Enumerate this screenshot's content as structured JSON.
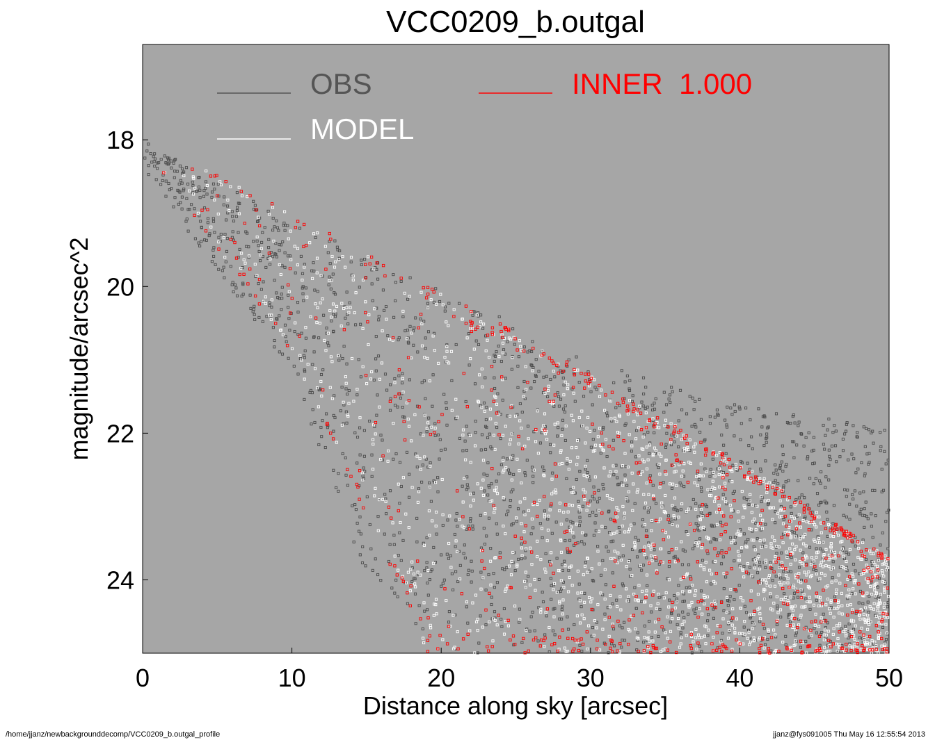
{
  "chart_data": {
    "type": "scatter",
    "title": "VCC0209_b.outgal",
    "xlabel": "Distance along sky [arcsec]",
    "ylabel": "magnitude/arcsec^2",
    "xlim": [
      0,
      50
    ],
    "ylim": [
      25.0,
      16.7
    ],
    "y_inverted": true,
    "x_ticks": [
      "0",
      "10",
      "20",
      "30",
      "40",
      "50"
    ],
    "y_ticks": [
      "18",
      "20",
      "22",
      "24"
    ],
    "background": "#a6a6a6",
    "grid": false,
    "legend_placement": "top",
    "legend": [
      {
        "name": "OBS",
        "color": "#555555"
      },
      {
        "name": "MODEL",
        "color": "#ffffff"
      },
      {
        "name": "INNER  1.000",
        "color": "#ff0000"
      }
    ],
    "series": [
      {
        "name": "OBS",
        "color": "#4d4d4d",
        "marker": "open-square",
        "description": "observed profile points",
        "upper_edge": [
          [
            0.0,
            18.0
          ],
          [
            10.0,
            19.1
          ],
          [
            20.0,
            20.0
          ],
          [
            30.0,
            21.0
          ],
          [
            40.0,
            21.6
          ],
          [
            50.0,
            21.9
          ]
        ],
        "lower_edge": [
          [
            0.0,
            18.4
          ],
          [
            10.0,
            21.2
          ],
          [
            15.0,
            24.0
          ],
          [
            20.0,
            25.0
          ]
        ]
      },
      {
        "name": "MODEL",
        "color": "#ffffff",
        "marker": "open-square",
        "description": "model profile points",
        "upper_edge": [
          [
            0.0,
            18.0
          ],
          [
            10.0,
            18.95
          ],
          [
            20.0,
            20.05
          ],
          [
            30.0,
            21.2
          ],
          [
            40.0,
            22.4
          ],
          [
            50.0,
            23.7
          ]
        ],
        "lower_edge": [
          [
            0.0,
            18.05
          ],
          [
            10.0,
            20.9
          ],
          [
            19.0,
            25.0
          ]
        ]
      },
      {
        "name": "INNER  1.000",
        "color": "#ff0000",
        "marker": "open-square",
        "description": "inner model component points",
        "upper_edge": [
          [
            0.0,
            18.0
          ],
          [
            10.0,
            18.95
          ],
          [
            20.0,
            20.05
          ],
          [
            30.0,
            21.2
          ],
          [
            40.0,
            22.4
          ],
          [
            50.0,
            23.7
          ]
        ],
        "lower_edge": [
          [
            0.0,
            18.05
          ],
          [
            10.0,
            20.9
          ],
          [
            19.0,
            25.0
          ]
        ]
      }
    ]
  },
  "footer": {
    "left": "/home/jjanz/newbackgrounddecomp/VCC0209_b.outgal_profile",
    "right": "jjanz@fys091005  Thu May 16 12:55:54 2013"
  }
}
